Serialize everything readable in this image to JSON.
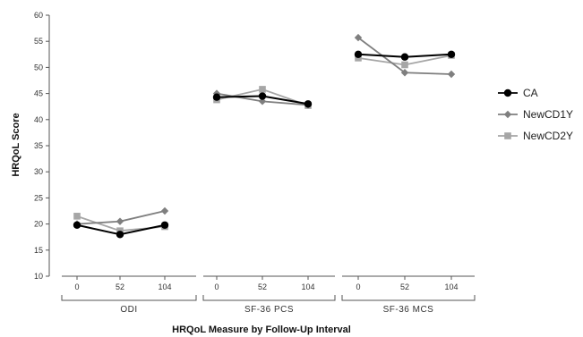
{
  "chart_data": {
    "type": "line",
    "xlabel": "HRQoL Measure by Follow-Up Interval",
    "ylabel": "HRQoL Score",
    "ylim": [
      10,
      60
    ],
    "yticks": [
      10,
      15,
      20,
      25,
      30,
      35,
      40,
      45,
      50,
      55,
      60
    ],
    "grid": false,
    "legend_position": "right",
    "groups": [
      {
        "label": "ODI",
        "ticks": [
          "0",
          "52",
          "104"
        ]
      },
      {
        "label": "SF-36 PCS",
        "ticks": [
          "0",
          "52",
          "104"
        ]
      },
      {
        "label": "SF-36 MCS",
        "ticks": [
          "0",
          "52",
          "104"
        ]
      }
    ],
    "series": [
      {
        "name": "CA",
        "color": "#000000",
        "marker": "circle",
        "groups": [
          [
            19.8,
            18.0,
            19.8
          ],
          [
            44.3,
            44.5,
            43.0
          ],
          [
            52.5,
            52.0,
            52.5
          ]
        ]
      },
      {
        "name": "NewCD1Y",
        "color": "#7f7f7f",
        "marker": "diamond",
        "groups": [
          [
            20.0,
            20.5,
            22.5
          ],
          [
            45.0,
            43.5,
            42.8
          ],
          [
            55.7,
            49.0,
            48.7
          ]
        ]
      },
      {
        "name": "NewCD2Y",
        "color": "#a6a6a6",
        "marker": "square",
        "groups": [
          [
            21.5,
            18.7,
            19.5
          ],
          [
            43.8,
            45.8,
            42.7
          ],
          [
            51.8,
            50.5,
            52.3
          ]
        ]
      }
    ]
  }
}
